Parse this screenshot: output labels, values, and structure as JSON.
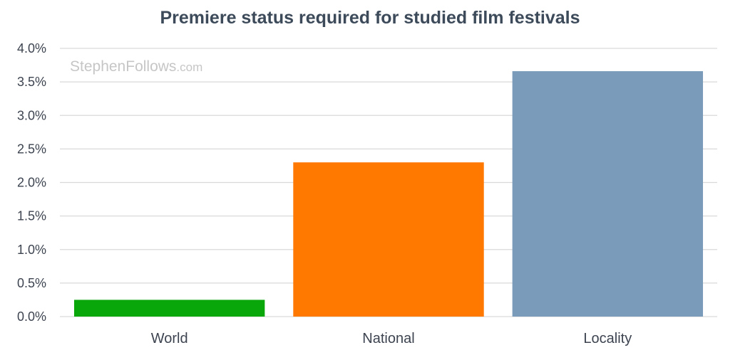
{
  "chart_data": {
    "type": "bar",
    "title": "Premiere status required for studied film festivals",
    "categories": [
      "World",
      "National",
      "Locality"
    ],
    "values": [
      0.25,
      2.3,
      3.66
    ],
    "value_unit": "%",
    "colors": [
      "#0aa70a",
      "#ff7800",
      "#7a9cba"
    ],
    "ylim": [
      0,
      4.0
    ],
    "y_ticks": [
      "0.0%",
      "0.5%",
      "1.0%",
      "1.5%",
      "2.0%",
      "2.5%",
      "3.0%",
      "3.5%",
      "4.0%"
    ],
    "grid": true,
    "legend": "none",
    "watermark": {
      "main": "StephenFollows",
      "suffix": ".com"
    }
  }
}
